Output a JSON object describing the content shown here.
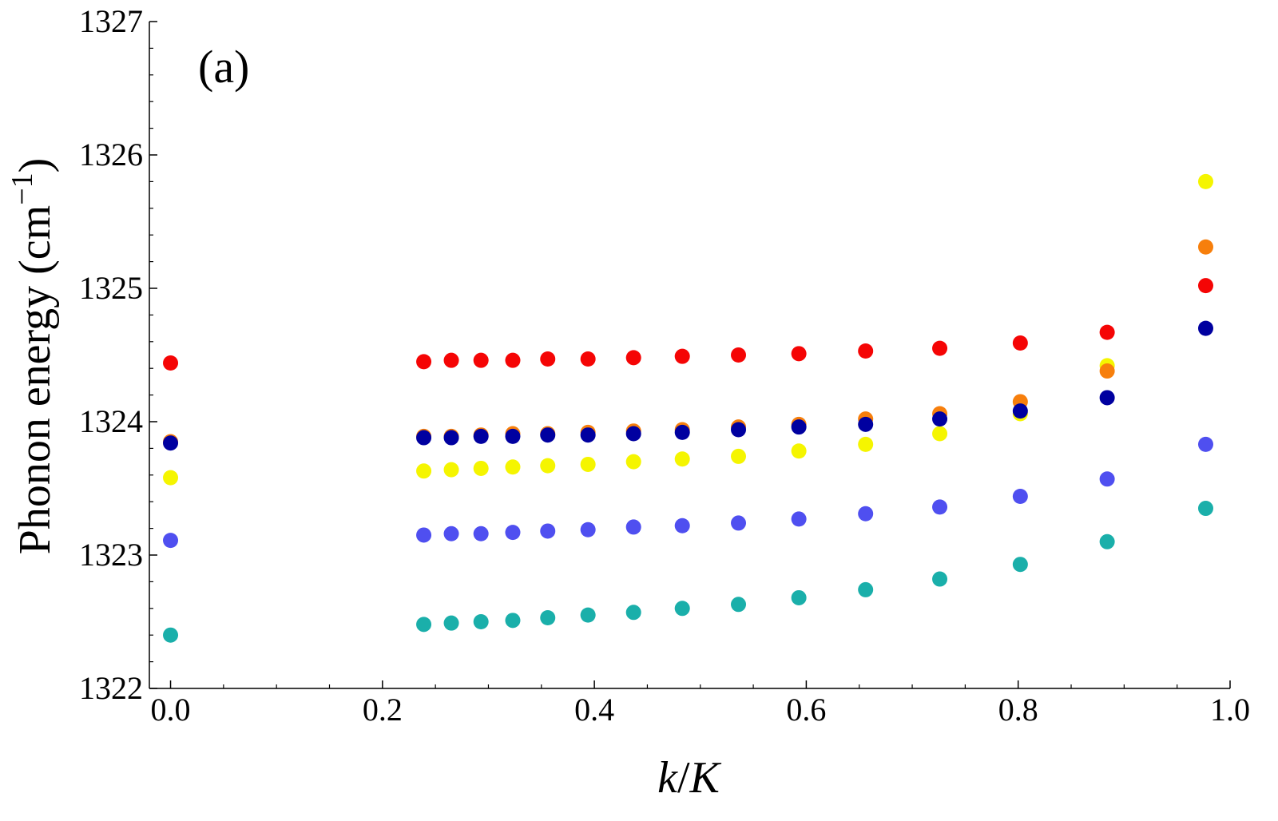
{
  "chart_data": {
    "type": "scatter",
    "title": "",
    "panel_label": "(a)",
    "xlabel": {
      "italic_k": "k",
      "slash": "/",
      "italic_K": "K"
    },
    "ylabel": {
      "text": "Phonon energy (cm",
      "superscript": "−1",
      "close": ")"
    },
    "xlim": [
      -0.02,
      1.0
    ],
    "ylim": [
      1322,
      1327
    ],
    "x_ticks": [
      {
        "value": 0.0,
        "label": "0.0"
      },
      {
        "value": 0.2,
        "label": "0.2"
      },
      {
        "value": 0.4,
        "label": "0.4"
      },
      {
        "value": 0.6,
        "label": "0.6"
      },
      {
        "value": 0.8,
        "label": "0.8"
      },
      {
        "value": 1.0,
        "label": "1.0"
      }
    ],
    "y_ticks": [
      {
        "value": 1322,
        "label": "1322"
      },
      {
        "value": 1323,
        "label": "1323"
      },
      {
        "value": 1324,
        "label": "1324"
      },
      {
        "value": 1325,
        "label": "1325"
      },
      {
        "value": 1326,
        "label": "1326"
      },
      {
        "value": 1327,
        "label": "1327"
      }
    ],
    "x_minor_step": 0.05,
    "y_minor_step": 0.2,
    "grid": false,
    "legend": "none",
    "x": [
      0.0,
      0.239,
      0.265,
      0.293,
      0.323,
      0.356,
      0.394,
      0.437,
      0.483,
      0.536,
      0.593,
      0.656,
      0.726,
      0.802,
      0.884,
      0.977
    ],
    "series": [
      {
        "name": "teal",
        "color": "#1aafaa",
        "values": [
          1322.4,
          1322.48,
          1322.49,
          1322.5,
          1322.51,
          1322.53,
          1322.55,
          1322.57,
          1322.6,
          1322.63,
          1322.68,
          1322.74,
          1322.82,
          1322.93,
          1323.1,
          1323.35
        ]
      },
      {
        "name": "slate-blue",
        "color": "#4f4ff0",
        "values": [
          1323.11,
          1323.15,
          1323.16,
          1323.16,
          1323.17,
          1323.18,
          1323.19,
          1323.21,
          1323.22,
          1323.24,
          1323.27,
          1323.31,
          1323.36,
          1323.44,
          1323.57,
          1323.83
        ]
      },
      {
        "name": "yellow",
        "color": "#f5f500",
        "values": [
          1323.58,
          1323.63,
          1323.64,
          1323.65,
          1323.66,
          1323.67,
          1323.68,
          1323.7,
          1323.72,
          1323.74,
          1323.78,
          1323.83,
          1323.91,
          1324.06,
          1324.42,
          1325.8
        ]
      },
      {
        "name": "orange",
        "color": "#f77f0c",
        "values": [
          1323.85,
          1323.89,
          1323.89,
          1323.9,
          1323.91,
          1323.91,
          1323.92,
          1323.93,
          1323.94,
          1323.96,
          1323.98,
          1324.02,
          1324.06,
          1324.15,
          1324.38,
          1325.31
        ]
      },
      {
        "name": "navy",
        "color": "#0000a0",
        "values": [
          1323.84,
          1323.88,
          1323.88,
          1323.89,
          1323.89,
          1323.9,
          1323.9,
          1323.91,
          1323.92,
          1323.94,
          1323.96,
          1323.98,
          1324.02,
          1324.08,
          1324.18,
          1324.7
        ]
      },
      {
        "name": "red",
        "color": "#f50505",
        "values": [
          1324.44,
          1324.45,
          1324.46,
          1324.46,
          1324.46,
          1324.47,
          1324.47,
          1324.48,
          1324.49,
          1324.5,
          1324.51,
          1324.53,
          1324.55,
          1324.59,
          1324.67,
          1325.02
        ]
      }
    ]
  }
}
